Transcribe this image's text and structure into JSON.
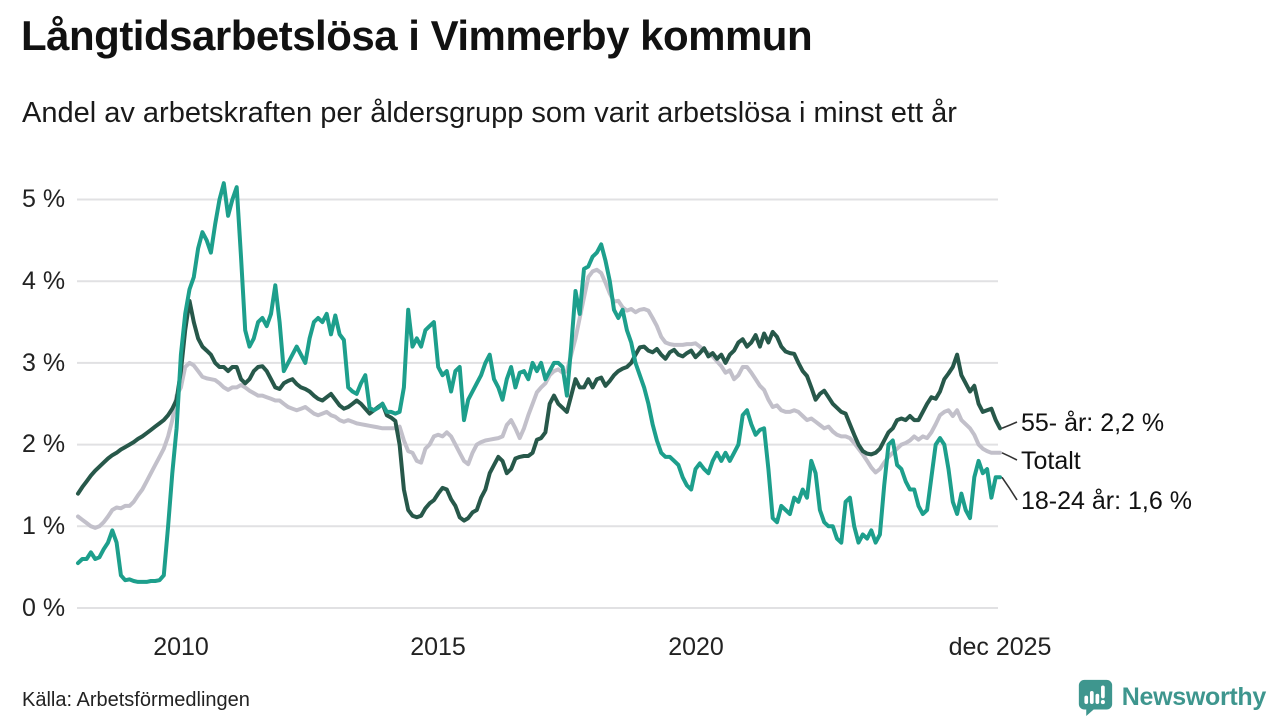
{
  "header": {
    "title": "Långtidsarbetslösa i Vimmerby kommun",
    "subtitle": "Andel av arbetskraften per åldersgrupp som varit arbetslösa i minst ett år"
  },
  "footer": {
    "source": "Källa: Arbetsförmedlingen",
    "brand": "Newsworthy"
  },
  "colors": {
    "series_55": "#27584a",
    "series_total": "#c2c0ca",
    "series_1824": "#1d9f8c",
    "gridline": "#e1e1e3",
    "leader_line": "#333333",
    "brand_teal": "#3e968e",
    "text": "#1a1a1a"
  },
  "chart_data": {
    "type": "line",
    "title": "Långtidsarbetslösa i Vimmerby kommun",
    "subtitle": "Andel av arbetskraften per åldersgrupp som varit arbetslösa i minst ett år",
    "unit": "%",
    "interval": "monthly",
    "x_start": "2008-01",
    "x_end": "2025-12",
    "ylim": [
      0,
      5.3
    ],
    "grid": true,
    "y_ticks": [
      "0 %",
      "1 %",
      "2 %",
      "3 %",
      "4 %",
      "5 %"
    ],
    "x_ticks": [
      {
        "label": "2010",
        "month_index": 24
      },
      {
        "label": "2015",
        "month_index": 84
      },
      {
        "label": "2020",
        "month_index": 144
      },
      {
        "label": "dec 2025",
        "month_index": 215
      }
    ],
    "series": [
      {
        "name": "55- år",
        "end_label": "55- år: 2,2 %",
        "end_value": 2.2,
        "color": "#27584a",
        "values": [
          1.4,
          1.48,
          1.55,
          1.62,
          1.68,
          1.73,
          1.78,
          1.83,
          1.87,
          1.9,
          1.94,
          1.97,
          2.0,
          2.03,
          2.07,
          2.1,
          2.14,
          2.18,
          2.22,
          2.26,
          2.3,
          2.36,
          2.44,
          2.55,
          2.9,
          3.4,
          3.76,
          3.5,
          3.3,
          3.2,
          3.15,
          3.1,
          3.0,
          2.95,
          2.95,
          2.9,
          2.95,
          2.95,
          2.8,
          2.75,
          2.8,
          2.9,
          2.95,
          2.96,
          2.9,
          2.8,
          2.7,
          2.68,
          2.75,
          2.78,
          2.8,
          2.74,
          2.7,
          2.68,
          2.65,
          2.6,
          2.56,
          2.54,
          2.58,
          2.62,
          2.55,
          2.48,
          2.44,
          2.46,
          2.5,
          2.54,
          2.5,
          2.44,
          2.38,
          2.42,
          2.46,
          2.5,
          2.36,
          2.33,
          2.29,
          2.0,
          1.45,
          1.2,
          1.13,
          1.11,
          1.13,
          1.22,
          1.28,
          1.32,
          1.4,
          1.47,
          1.45,
          1.33,
          1.25,
          1.11,
          1.07,
          1.1,
          1.17,
          1.2,
          1.35,
          1.45,
          1.65,
          1.75,
          1.85,
          1.8,
          1.65,
          1.7,
          1.83,
          1.85,
          1.86,
          1.86,
          1.9,
          2.06,
          2.08,
          2.15,
          2.5,
          2.6,
          2.5,
          2.45,
          2.4,
          2.6,
          2.8,
          2.7,
          2.7,
          2.8,
          2.7,
          2.8,
          2.82,
          2.72,
          2.78,
          2.85,
          2.9,
          2.93,
          2.95,
          3.0,
          3.1,
          3.19,
          3.2,
          3.15,
          3.13,
          3.17,
          3.1,
          3.05,
          3.13,
          3.16,
          3.1,
          3.08,
          3.12,
          3.15,
          3.07,
          3.12,
          3.18,
          3.08,
          3.12,
          3.05,
          3.1,
          3.0,
          3.1,
          3.15,
          3.25,
          3.29,
          3.2,
          3.25,
          3.34,
          3.2,
          3.36,
          3.25,
          3.38,
          3.32,
          3.2,
          3.14,
          3.12,
          3.11,
          3.0,
          2.9,
          2.84,
          2.7,
          2.55,
          2.62,
          2.66,
          2.58,
          2.5,
          2.45,
          2.4,
          2.38,
          2.25,
          2.12,
          2.0,
          1.92,
          1.89,
          1.88,
          1.9,
          1.95,
          2.05,
          2.15,
          2.2,
          2.3,
          2.32,
          2.3,
          2.35,
          2.3,
          2.3,
          2.4,
          2.5,
          2.58,
          2.56,
          2.65,
          2.8,
          2.87,
          2.95,
          3.1,
          2.85,
          2.75,
          2.65,
          2.72,
          2.5,
          2.4,
          2.42,
          2.44,
          2.3,
          2.2
        ]
      },
      {
        "name": "Totalt",
        "end_label": "Totalt",
        "end_value": 1.9,
        "color": "#c2c0ca",
        "values": [
          1.12,
          1.08,
          1.04,
          1.0,
          0.98,
          1.0,
          1.05,
          1.12,
          1.2,
          1.23,
          1.22,
          1.25,
          1.25,
          1.3,
          1.38,
          1.45,
          1.55,
          1.65,
          1.75,
          1.85,
          1.95,
          2.1,
          2.3,
          2.6,
          2.7,
          2.95,
          3.0,
          2.97,
          2.9,
          2.83,
          2.81,
          2.8,
          2.79,
          2.75,
          2.7,
          2.67,
          2.7,
          2.7,
          2.73,
          2.7,
          2.66,
          2.63,
          2.6,
          2.6,
          2.58,
          2.56,
          2.54,
          2.54,
          2.5,
          2.46,
          2.44,
          2.42,
          2.44,
          2.46,
          2.42,
          2.38,
          2.36,
          2.38,
          2.4,
          2.36,
          2.34,
          2.3,
          2.28,
          2.3,
          2.28,
          2.26,
          2.25,
          2.24,
          2.23,
          2.22,
          2.21,
          2.2,
          2.2,
          2.2,
          2.2,
          2.22,
          2.05,
          1.92,
          1.9,
          1.8,
          1.78,
          1.95,
          2.0,
          2.1,
          2.12,
          2.1,
          2.15,
          2.1,
          2.0,
          1.9,
          1.8,
          1.76,
          1.9,
          2.0,
          2.03,
          2.05,
          2.06,
          2.07,
          2.08,
          2.1,
          2.24,
          2.3,
          2.2,
          2.08,
          2.2,
          2.36,
          2.5,
          2.64,
          2.7,
          2.75,
          2.85,
          2.9,
          2.92,
          2.88,
          2.9,
          3.1,
          3.3,
          3.55,
          3.8,
          4.05,
          4.12,
          4.14,
          4.1,
          3.98,
          3.85,
          3.75,
          3.76,
          3.68,
          3.64,
          3.66,
          3.62,
          3.65,
          3.66,
          3.64,
          3.55,
          3.45,
          3.32,
          3.25,
          3.23,
          3.22,
          3.22,
          3.22,
          3.23,
          3.23,
          3.24,
          3.2,
          3.15,
          3.12,
          3.08,
          3.02,
          2.96,
          2.88,
          2.91,
          2.8,
          2.85,
          2.95,
          2.95,
          2.88,
          2.8,
          2.72,
          2.67,
          2.55,
          2.46,
          2.48,
          2.42,
          2.4,
          2.4,
          2.42,
          2.4,
          2.35,
          2.3,
          2.32,
          2.28,
          2.24,
          2.2,
          2.22,
          2.16,
          2.12,
          2.1,
          2.1,
          2.08,
          2.02,
          1.95,
          1.88,
          1.8,
          1.72,
          1.66,
          1.7,
          1.78,
          1.85,
          1.9,
          1.95,
          2.0,
          2.02,
          2.05,
          2.1,
          2.06,
          2.1,
          2.08,
          2.15,
          2.25,
          2.36,
          2.4,
          2.42,
          2.35,
          2.42,
          2.3,
          2.25,
          2.2,
          2.12,
          2.0,
          1.95,
          1.92,
          1.9,
          1.9,
          1.9
        ]
      },
      {
        "name": "18-24 år",
        "end_label": "18-24 år: 1,6 %",
        "end_value": 1.6,
        "color": "#1d9f8c",
        "values": [
          0.55,
          0.6,
          0.6,
          0.68,
          0.6,
          0.62,
          0.72,
          0.8,
          0.95,
          0.8,
          0.4,
          0.34,
          0.35,
          0.33,
          0.32,
          0.32,
          0.32,
          0.33,
          0.33,
          0.34,
          0.4,
          1.0,
          1.65,
          2.2,
          3.1,
          3.6,
          3.9,
          4.05,
          4.4,
          4.6,
          4.5,
          4.35,
          4.7,
          5.0,
          5.2,
          4.8,
          5.0,
          5.15,
          4.3,
          3.4,
          3.2,
          3.3,
          3.5,
          3.55,
          3.45,
          3.6,
          3.95,
          3.5,
          2.9,
          3.0,
          3.1,
          3.2,
          3.1,
          3.0,
          3.3,
          3.5,
          3.55,
          3.5,
          3.6,
          3.35,
          3.58,
          3.35,
          3.28,
          2.7,
          2.65,
          2.62,
          2.75,
          2.85,
          2.45,
          2.42,
          2.45,
          2.5,
          2.4,
          2.4,
          2.38,
          2.4,
          2.7,
          3.65,
          3.2,
          3.3,
          3.2,
          3.4,
          3.45,
          3.5,
          2.95,
          2.85,
          2.9,
          2.65,
          2.9,
          2.95,
          2.3,
          2.55,
          2.65,
          2.75,
          2.85,
          3.0,
          3.1,
          2.8,
          2.7,
          2.55,
          2.8,
          2.95,
          2.7,
          2.88,
          2.9,
          2.8,
          3.0,
          2.9,
          3.0,
          2.8,
          2.9,
          3.0,
          3.0,
          2.95,
          2.6,
          3.2,
          3.88,
          3.6,
          4.15,
          4.18,
          4.3,
          4.35,
          4.45,
          4.25,
          4.0,
          3.65,
          3.55,
          3.65,
          3.4,
          3.25,
          3.0,
          2.85,
          2.7,
          2.5,
          2.25,
          2.05,
          1.9,
          1.85,
          1.85,
          1.8,
          1.75,
          1.6,
          1.5,
          1.45,
          1.7,
          1.77,
          1.7,
          1.65,
          1.8,
          1.9,
          1.8,
          1.9,
          1.8,
          1.9,
          2.0,
          2.36,
          2.42,
          2.25,
          2.12,
          2.18,
          2.2,
          1.7,
          1.1,
          1.05,
          1.25,
          1.2,
          1.15,
          1.35,
          1.3,
          1.45,
          1.35,
          1.8,
          1.65,
          1.2,
          1.05,
          1.0,
          1.0,
          0.85,
          0.8,
          1.3,
          1.35,
          1.0,
          0.8,
          0.9,
          0.85,
          0.95,
          0.8,
          0.9,
          1.5,
          2.0,
          2.05,
          1.75,
          1.7,
          1.55,
          1.45,
          1.45,
          1.25,
          1.15,
          1.2,
          1.6,
          2.0,
          2.08,
          2.0,
          1.7,
          1.3,
          1.15,
          1.4,
          1.2,
          1.1,
          1.6,
          1.8,
          1.65,
          1.7,
          1.35,
          1.6,
          1.6
        ]
      }
    ],
    "legend_position": "right-of-line-ends"
  }
}
